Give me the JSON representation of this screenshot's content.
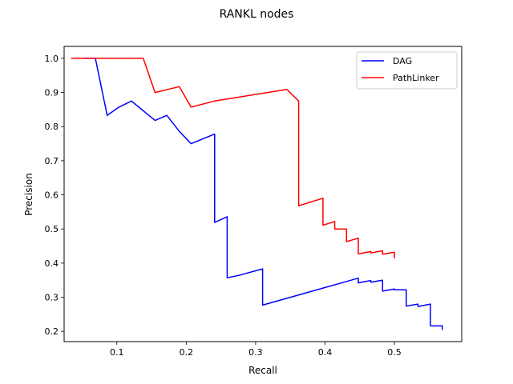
{
  "chart_data": {
    "type": "line",
    "title": "RANKL nodes",
    "xlabel": "Recall",
    "ylabel": "Precision",
    "xlim": [
      0.024,
      0.597
    ],
    "ylim": [
      0.17,
      1.035
    ],
    "x_ticks": [
      "0.1",
      "0.2",
      "0.3",
      "0.4",
      "0.5"
    ],
    "x_tick_values": [
      0.1,
      0.2,
      0.3,
      0.4,
      0.5
    ],
    "y_ticks": [
      "0.2",
      "0.3",
      "0.4",
      "0.5",
      "0.6",
      "0.7",
      "0.8",
      "0.9",
      "1.0"
    ],
    "y_tick_values": [
      0.2,
      0.3,
      0.4,
      0.5,
      0.6,
      0.7,
      0.8,
      0.9,
      1.0
    ],
    "grid": false,
    "legend_position": "top-right",
    "series": [
      {
        "name": "DAG",
        "color": "#0000ff",
        "x": [
          0.052,
          0.069,
          0.086,
          0.103,
          0.121,
          0.155,
          0.172,
          0.19,
          0.207,
          0.241,
          0.241,
          0.259,
          0.259,
          0.276,
          0.31,
          0.31,
          0.448,
          0.448,
          0.466,
          0.466,
          0.483,
          0.483,
          0.5,
          0.5,
          0.517,
          0.517,
          0.534,
          0.534,
          0.552,
          0.552,
          0.569,
          0.569
        ],
        "y": [
          1.0,
          1.0,
          0.833,
          0.857,
          0.875,
          0.818,
          0.833,
          0.786,
          0.75,
          0.778,
          0.519,
          0.536,
          0.357,
          0.364,
          0.383,
          0.277,
          0.356,
          0.342,
          0.349,
          0.344,
          0.35,
          0.318,
          0.324,
          0.322,
          0.322,
          0.274,
          0.28,
          0.273,
          0.28,
          0.216,
          0.216,
          0.204
        ]
      },
      {
        "name": "PathLinker",
        "color": "#ff0000",
        "x": [
          0.034,
          0.138,
          0.155,
          0.19,
          0.207,
          0.241,
          0.345,
          0.362,
          0.362,
          0.397,
          0.397,
          0.414,
          0.414,
          0.431,
          0.431,
          0.448,
          0.448,
          0.466,
          0.466,
          0.483,
          0.483,
          0.5,
          0.5
        ],
        "y": [
          1.0,
          1.0,
          0.9,
          0.917,
          0.857,
          0.875,
          0.909,
          0.875,
          0.568,
          0.59,
          0.511,
          0.522,
          0.5,
          0.5,
          0.463,
          0.473,
          0.427,
          0.434,
          0.43,
          0.436,
          0.426,
          0.432,
          0.414
        ]
      }
    ]
  }
}
